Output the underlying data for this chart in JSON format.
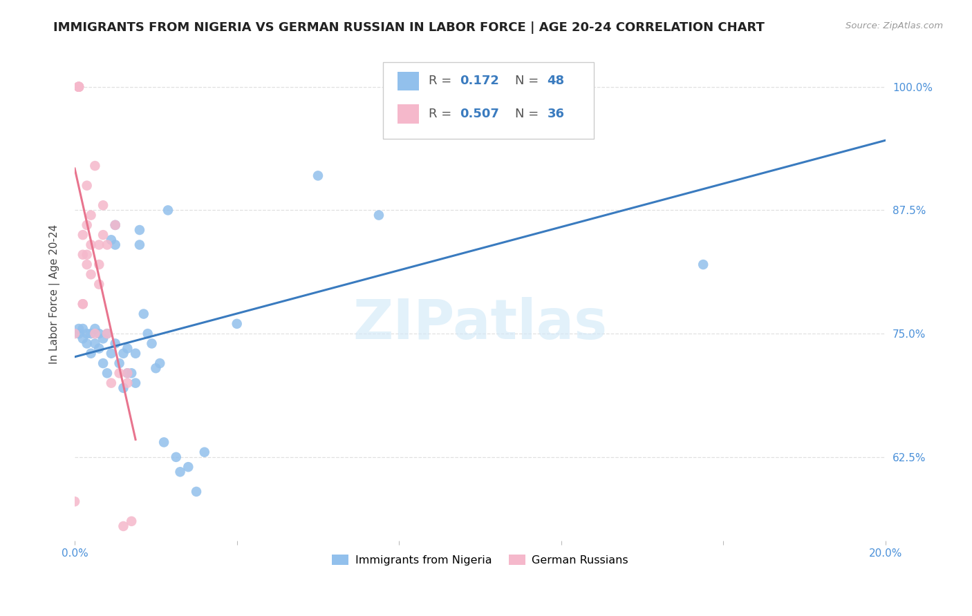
{
  "title": "IMMIGRANTS FROM NIGERIA VS GERMAN RUSSIAN IN LABOR FORCE | AGE 20-24 CORRELATION CHART",
  "source": "Source: ZipAtlas.com",
  "ylabel": "In Labor Force | Age 20-24",
  "xlim": [
    0.0,
    0.2
  ],
  "ylim": [
    0.54,
    1.04
  ],
  "yticks": [
    0.625,
    0.75,
    0.875,
    1.0
  ],
  "yticklabels": [
    "62.5%",
    "75.0%",
    "87.5%",
    "100.0%"
  ],
  "xtick_positions": [
    0.0,
    0.04,
    0.08,
    0.12,
    0.16,
    0.2
  ],
  "xticklabels": [
    "0.0%",
    "",
    "",
    "",
    "",
    "20.0%"
  ],
  "nigeria_color": "#92c0ec",
  "german_russian_color": "#f5b8cb",
  "nigeria_line_color": "#3a7bbf",
  "german_russian_line_color": "#e8748e",
  "R_nigeria": 0.172,
  "N_nigeria": 48,
  "R_german_russian": 0.507,
  "N_german_russian": 36,
  "watermark": "ZIPatlas",
  "nigeria_x": [
    0.001,
    0.001,
    0.002,
    0.002,
    0.003,
    0.003,
    0.004,
    0.004,
    0.005,
    0.005,
    0.006,
    0.006,
    0.007,
    0.007,
    0.008,
    0.008,
    0.009,
    0.009,
    0.01,
    0.01,
    0.01,
    0.011,
    0.012,
    0.012,
    0.013,
    0.013,
    0.014,
    0.015,
    0.015,
    0.016,
    0.016,
    0.017,
    0.018,
    0.019,
    0.02,
    0.021,
    0.022,
    0.023,
    0.025,
    0.026,
    0.028,
    0.03,
    0.032,
    0.04,
    0.06,
    0.075,
    0.125,
    0.155
  ],
  "nigeria_y": [
    0.75,
    0.755,
    0.745,
    0.755,
    0.74,
    0.75,
    0.73,
    0.75,
    0.74,
    0.755,
    0.735,
    0.75,
    0.72,
    0.745,
    0.71,
    0.75,
    0.73,
    0.845,
    0.84,
    0.86,
    0.74,
    0.72,
    0.695,
    0.73,
    0.71,
    0.735,
    0.71,
    0.7,
    0.73,
    0.84,
    0.855,
    0.77,
    0.75,
    0.74,
    0.715,
    0.72,
    0.64,
    0.875,
    0.625,
    0.61,
    0.615,
    0.59,
    0.63,
    0.76,
    0.91,
    0.87,
    1.0,
    0.82
  ],
  "german_russian_x": [
    0.0,
    0.0,
    0.001,
    0.001,
    0.001,
    0.001,
    0.001,
    0.001,
    0.001,
    0.002,
    0.002,
    0.002,
    0.002,
    0.003,
    0.003,
    0.003,
    0.003,
    0.004,
    0.004,
    0.004,
    0.005,
    0.005,
    0.006,
    0.006,
    0.006,
    0.007,
    0.007,
    0.008,
    0.008,
    0.009,
    0.01,
    0.011,
    0.012,
    0.013,
    0.013,
    0.014
  ],
  "german_russian_y": [
    0.58,
    0.75,
    1.0,
    1.0,
    1.0,
    1.0,
    1.0,
    1.0,
    1.0,
    0.83,
    0.85,
    0.78,
    0.78,
    0.82,
    0.86,
    0.9,
    0.83,
    0.81,
    0.84,
    0.87,
    0.75,
    0.92,
    0.8,
    0.82,
    0.84,
    0.85,
    0.88,
    0.75,
    0.84,
    0.7,
    0.86,
    0.71,
    0.555,
    0.7,
    0.71,
    0.56
  ],
  "background_color": "#ffffff",
  "grid_color": "#e0e0e0",
  "title_fontsize": 13,
  "axis_label_fontsize": 11,
  "tick_fontsize": 11,
  "legend_fs": 13
}
